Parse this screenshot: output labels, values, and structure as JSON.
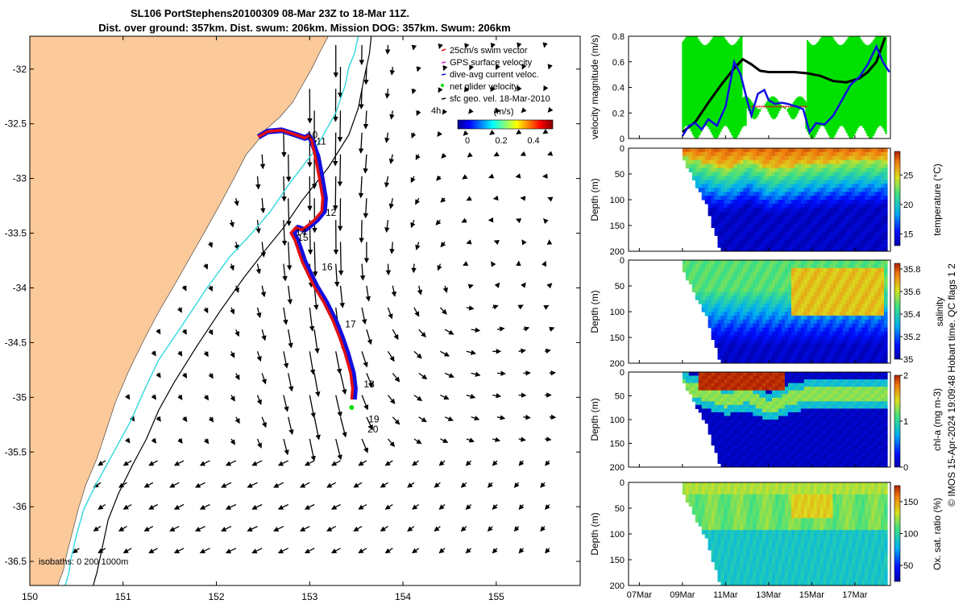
{
  "title_line1": "SL106 PortStephens20100309 08-Mar 23Z to 18-Mar 11Z.",
  "title_line2": "Dist. over ground: 357km. Dist. swum: 206km. Mission DOG: 357km. Swum: 206km",
  "credit": "© IMOS 15-Apr-2024 19:09:48 Hobart time. QC flags 1  2",
  "colors": {
    "land": "#fbc99a",
    "track_red": "#e01010",
    "track_blue": "#1010e0",
    "isobath_cyan": "#30d8e0",
    "net_green": "#00e000"
  },
  "chart_data": [
    {
      "id": "map",
      "type": "scatter",
      "title": "SL106 PortStephens20100309 08-Mar 23Z to 18-Mar 11Z.",
      "xlim": [
        150,
        155.9
      ],
      "ylim": [
        -36.72,
        -31.7
      ],
      "xticks": [
        "150",
        "151",
        "152",
        "153",
        "154",
        "155"
      ],
      "yticks": [
        "-32",
        "-32.5",
        "-33",
        "-33.5",
        "-34",
        "-34.5",
        "-35",
        "-35.5",
        "-36",
        "-36.5"
      ],
      "legend": [
        "25cm/s swim vector",
        "GPS surface velocity",
        "dive-avg current veloc.",
        "net glider velocity",
        "sfc geo. vel. 18-Mar-2010"
      ],
      "time_label": "4h",
      "colorbar": {
        "label": "(m/s)",
        "ticks": [
          "0",
          "0.2",
          "0.4"
        ]
      },
      "isobath_note": "isobaths: 0   200  1000m",
      "day_labels": [
        {
          "label": "10",
          "lon": 152.97,
          "lat": -32.63
        },
        {
          "label": "11",
          "lon": 153.07,
          "lat": -32.69
        },
        {
          "label": "12",
          "lon": 153.17,
          "lat": -33.34
        },
        {
          "label": "14",
          "lon": 152.85,
          "lat": -33.52
        },
        {
          "label": "15",
          "lon": 152.87,
          "lat": -33.57
        },
        {
          "label": "16",
          "lon": 153.13,
          "lat": -33.84
        },
        {
          "label": "17",
          "lon": 153.38,
          "lat": -34.36
        },
        {
          "label": "18",
          "lon": 153.58,
          "lat": -34.91
        },
        {
          "label": "19",
          "lon": 153.63,
          "lat": -35.23
        },
        {
          "label": "20",
          "lon": 153.62,
          "lat": -35.32
        }
      ],
      "track": {
        "lon": [
          152.45,
          152.55,
          152.7,
          152.85,
          152.95,
          152.99,
          153.02,
          153.06,
          153.1,
          153.14,
          153.13,
          153.05,
          152.98,
          152.92,
          152.85,
          152.8,
          152.84,
          152.88,
          152.92,
          152.98,
          153.05,
          153.15,
          153.25,
          153.32,
          153.38,
          153.44,
          153.46,
          153.45
        ],
        "lat": [
          -32.62,
          -32.57,
          -32.56,
          -32.6,
          -32.63,
          -32.61,
          -32.65,
          -32.8,
          -32.98,
          -33.18,
          -33.3,
          -33.38,
          -33.43,
          -33.47,
          -33.45,
          -33.5,
          -33.56,
          -33.66,
          -33.76,
          -33.87,
          -33.99,
          -34.13,
          -34.3,
          -34.45,
          -34.6,
          -34.78,
          -34.92,
          -35.02
        ]
      },
      "current_field": {
        "note": "surface geostrophic velocity grid; u,v in m/s",
        "lon_start": 150.2,
        "lon_step": 0.28,
        "lon_count": 20,
        "lat_start": -31.78,
        "lat_step": -0.2,
        "lat_count": 24
      },
      "isobaths": {
        "iso200": {
          "lon": [
            153.52,
            153.48,
            153.42,
            153.38,
            153.28,
            153.05,
            152.78,
            152.58,
            152.38,
            152.14,
            151.9,
            151.62,
            151.38,
            151.22,
            151.08,
            150.9,
            150.72,
            150.58,
            150.5,
            150.44,
            150.42,
            150.38
          ],
          "lat": [
            -31.7,
            -31.86,
            -31.98,
            -32.15,
            -32.4,
            -32.75,
            -33.05,
            -33.3,
            -33.5,
            -33.72,
            -34.0,
            -34.36,
            -34.66,
            -34.95,
            -35.22,
            -35.5,
            -35.78,
            -36.02,
            -36.26,
            -36.48,
            -36.6,
            -36.72
          ]
        },
        "iso1000": {
          "lon": [
            153.66,
            153.64,
            153.58,
            153.52,
            153.42,
            153.2,
            152.92,
            152.72,
            152.52,
            152.3,
            152.05,
            151.8,
            151.55,
            151.38,
            151.25,
            151.1,
            150.95,
            150.84,
            150.78,
            150.72,
            150.68
          ],
          "lat": [
            -31.7,
            -31.86,
            -32.1,
            -32.36,
            -32.6,
            -32.9,
            -33.2,
            -33.45,
            -33.66,
            -33.9,
            -34.2,
            -34.52,
            -34.86,
            -35.12,
            -35.38,
            -35.62,
            -35.88,
            -36.12,
            -36.36,
            -36.6,
            -36.72
          ]
        },
        "coast": {
          "lon": [
            153.2,
            153.1,
            153.02,
            152.92,
            152.82,
            152.68,
            152.52,
            152.44,
            152.32,
            152.2,
            152.05,
            151.88,
            151.72,
            151.56,
            151.38,
            151.22,
            151.06,
            150.92,
            150.82,
            150.72,
            150.6,
            150.52,
            150.46,
            150.4,
            150.36,
            150.3
          ],
          "lat": [
            -31.7,
            -31.86,
            -32.0,
            -32.15,
            -32.3,
            -32.44,
            -32.56,
            -32.66,
            -32.78,
            -32.98,
            -33.22,
            -33.48,
            -33.72,
            -33.96,
            -34.22,
            -34.48,
            -34.76,
            -35.04,
            -35.3,
            -35.56,
            -35.8,
            -36.02,
            -36.22,
            -36.42,
            -36.58,
            -36.72
          ]
        }
      }
    },
    {
      "id": "velocity",
      "type": "line",
      "ylabel": "velocity magnitude (m/s)",
      "ylim": [
        0,
        0.8
      ],
      "yticks": [
        "0",
        "0.2",
        "0.4",
        "0.6",
        "0.8"
      ],
      "xlim_days": [
        6.5,
        18.65
      ],
      "mission_days": [
        9.0,
        18.5
      ],
      "series": [
        {
          "name": "sfc geo. vel.",
          "color": "#000000",
          "days": [
            9.0,
            9.6,
            10.2,
            10.8,
            11.4,
            11.8,
            12.2,
            12.6,
            13.0,
            13.6,
            14.2,
            14.8,
            15.4,
            16.0,
            16.6,
            17.2,
            17.6,
            18.0,
            18.4
          ],
          "values": [
            0.05,
            0.13,
            0.28,
            0.42,
            0.55,
            0.62,
            0.58,
            0.53,
            0.52,
            0.52,
            0.52,
            0.51,
            0.49,
            0.45,
            0.44,
            0.47,
            0.52,
            0.6,
            0.79
          ]
        },
        {
          "name": "dive-avg current veloc.",
          "color": "#1010e0",
          "days": [
            9.0,
            9.3,
            9.6,
            9.9,
            10.2,
            10.6,
            11.0,
            11.4,
            11.7,
            12.0,
            12.2,
            12.5,
            12.8,
            13.0,
            13.3,
            13.6,
            13.9,
            14.3,
            14.6,
            14.9,
            15.2,
            15.6,
            16.0,
            16.4,
            16.8,
            17.2,
            17.6,
            18.0,
            18.3,
            18.6
          ],
          "values": [
            0.02,
            0.1,
            0.12,
            0.07,
            0.15,
            0.1,
            0.25,
            0.6,
            0.5,
            0.3,
            0.18,
            0.35,
            0.38,
            0.3,
            0.27,
            0.28,
            0.27,
            0.25,
            0.23,
            0.05,
            0.12,
            0.11,
            0.18,
            0.3,
            0.42,
            0.48,
            0.58,
            0.72,
            0.6,
            0.52
          ]
        },
        {
          "name": "net glider velocity",
          "color": "#00e000",
          "band_low": 0.05,
          "band_high": 0.78
        },
        {
          "name": "25cm/s swim vector",
          "color": "#e01010",
          "days": [
            12.2,
            14.8
          ],
          "values": [
            0.25,
            0.25
          ]
        }
      ]
    },
    {
      "id": "temperature",
      "type": "heatmap",
      "ylabel": "Depth (m)",
      "ylim": [
        0,
        200
      ],
      "yticks": [
        "0",
        "50",
        "100",
        "150",
        "200"
      ],
      "colorbar": {
        "label": "temperature (°C)",
        "range": [
          13,
          29
        ],
        "ticks": [
          "15",
          "20",
          "25"
        ]
      },
      "mixed_layer_depth": {
        "days": [
          9.0,
          10.0,
          11.0,
          11.5,
          12.0,
          12.5,
          13.0,
          14.0,
          15.0,
          16.0,
          17.0,
          18.0,
          18.6
        ],
        "depth": [
          30,
          50,
          70,
          60,
          40,
          55,
          75,
          65,
          55,
          50,
          45,
          45,
          45
        ]
      },
      "surface_value": 27.5,
      "deep_value": 14.5
    },
    {
      "id": "salinity",
      "type": "heatmap",
      "ylabel": "Depth (m)",
      "ylim": [
        0,
        200
      ],
      "yticks": [
        "0",
        "50",
        "100",
        "150",
        "200"
      ],
      "colorbar": {
        "label": "salinity",
        "range": [
          35.0,
          35.85
        ],
        "ticks": [
          "35",
          "35.2",
          "35.4",
          "35.6",
          "35.8"
        ]
      },
      "surface_value": 35.45,
      "deep_value": 35.05,
      "salty_patch_days": [
        14.0,
        18.3
      ]
    },
    {
      "id": "chl-a",
      "type": "heatmap",
      "ylabel": "Depth (m)",
      "ylim": [
        0,
        200
      ],
      "yticks": [
        "0",
        "50",
        "100",
        "150",
        "200"
      ],
      "colorbar": {
        "label": "chl-a (mg m-3)",
        "range": [
          0,
          2
        ],
        "ticks": [
          "0",
          "1",
          "2"
        ]
      },
      "max_depth_days": [
        9.0,
        10.0,
        11.0,
        12.0,
        13.0,
        14.0,
        15.0,
        16.0,
        17.0,
        18.0,
        18.6
      ],
      "max_depth": [
        30,
        45,
        60,
        50,
        75,
        55,
        45,
        45,
        45,
        45,
        45
      ]
    },
    {
      "id": "oxygen",
      "type": "heatmap",
      "ylabel": "Depth (m)",
      "ylim": [
        0,
        200
      ],
      "yticks": [
        "0",
        "50",
        "100",
        "150",
        "200"
      ],
      "colorbar": {
        "label": "Ox. sat. ratio (%)",
        "range": [
          25,
          175
        ],
        "ticks": [
          "50",
          "100",
          "150"
        ]
      },
      "surface_value": 125,
      "deep_value": 95
    },
    {
      "id": "time_axis",
      "type": "table",
      "xticks": [
        "07Mar",
        "09Mar",
        "11Mar",
        "13Mar",
        "15Mar",
        "17Mar"
      ],
      "tick_days": [
        7,
        9,
        11,
        13,
        15,
        17
      ]
    }
  ]
}
